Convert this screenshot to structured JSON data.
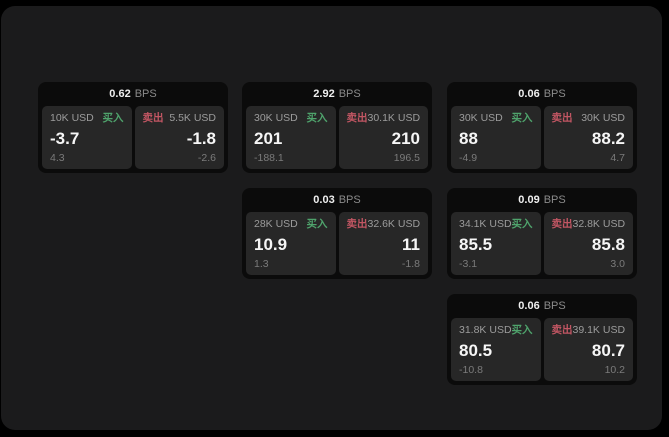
{
  "labels": {
    "buy": "买入",
    "sell": "卖出",
    "bps_unit": "BPS"
  },
  "colors": {
    "buy_green": "#4fa36c",
    "sell_red": "#c25663",
    "window_bg": "#1b1b1c",
    "card_bg": "#0b0b0b",
    "tile_bg": "#272727"
  },
  "cards": [
    {
      "bps": "0.62",
      "buy": {
        "amount": "10K USD",
        "value": "-3.7",
        "delta": "4.3"
      },
      "sell": {
        "amount": "5.5K USD",
        "value": "-1.8",
        "delta": "-2.6"
      }
    },
    {
      "bps": "2.92",
      "buy": {
        "amount": "30K USD",
        "value": "201",
        "delta": "-188.1"
      },
      "sell": {
        "amount": "30.1K USD",
        "value": "210",
        "delta": "196.5"
      }
    },
    {
      "bps": "0.06",
      "buy": {
        "amount": "30K USD",
        "value": "88",
        "delta": "-4.9"
      },
      "sell": {
        "amount": "30K USD",
        "value": "88.2",
        "delta": "4.7"
      }
    },
    {
      "bps": "0.03",
      "buy": {
        "amount": "28K USD",
        "value": "10.9",
        "delta": "1.3"
      },
      "sell": {
        "amount": "32.6K USD",
        "value": "11",
        "delta": "-1.8"
      }
    },
    {
      "bps": "0.09",
      "buy": {
        "amount": "34.1K USD",
        "value": "85.5",
        "delta": "-3.1"
      },
      "sell": {
        "amount": "32.8K USD",
        "value": "85.8",
        "delta": "3.0"
      }
    },
    {
      "bps": "0.06",
      "buy": {
        "amount": "31.8K USD",
        "value": "80.5",
        "delta": "-10.8"
      },
      "sell": {
        "amount": "39.1K USD",
        "value": "80.7",
        "delta": "10.2"
      }
    }
  ]
}
